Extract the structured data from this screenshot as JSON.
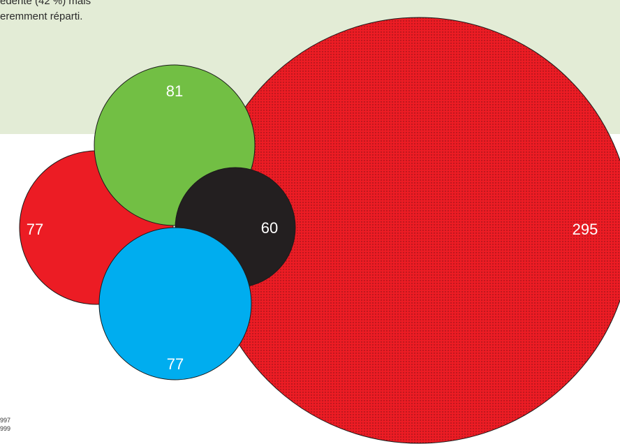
{
  "intro_text": [
    "édente (42 %) mais",
    "eremment réparti."
  ],
  "footnote": [
    "997",
    "999"
  ],
  "colors": {
    "band": "#e3ecd6",
    "red": "#ec1c24",
    "green": "#72bf44",
    "black": "#231f20",
    "blue": "#00adef",
    "label": "#ffffff"
  },
  "chart_data": {
    "type": "bubble",
    "title": "",
    "bubbles": [
      {
        "label": "295",
        "value": 295,
        "color": "#ec1c24",
        "pattern": "dotted"
      },
      {
        "label": "77",
        "value": 77,
        "color": "#ec1c24"
      },
      {
        "label": "81",
        "value": 81,
        "color": "#72bf44"
      },
      {
        "label": "60",
        "value": 60,
        "color": "#231f20"
      },
      {
        "label": "77",
        "value": 77,
        "color": "#00adef"
      }
    ]
  }
}
